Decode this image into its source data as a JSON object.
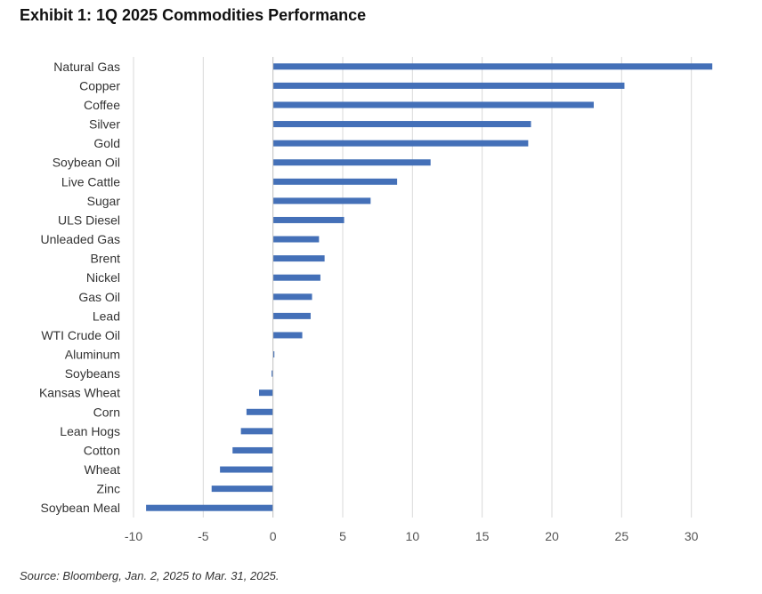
{
  "title": "Exhibit 1: 1Q 2025 Commodities Performance",
  "source": "Source: Bloomberg, Jan. 2, 2025 to Mar. 31, 2025.",
  "colors": {
    "bar": "#4470b8",
    "grid": "#d9d9d9",
    "zero_line": "#bfbfbf"
  },
  "chart_data": {
    "type": "bar",
    "orientation": "horizontal",
    "categories": [
      "Natural Gas",
      "Copper",
      "Coffee",
      "Silver",
      "Gold",
      "Soybean Oil",
      "Live Cattle",
      "Sugar",
      "ULS Diesel",
      "Unleaded Gas",
      "Brent",
      "Nickel",
      "Gas Oil",
      "Lead",
      "WTI Crude Oil",
      "Aluminum",
      "Soybeans",
      "Kansas Wheat",
      "Corn",
      "Lean Hogs",
      "Cotton",
      "Wheat",
      "Zinc",
      "Soybean Meal"
    ],
    "values": [
      31.5,
      25.2,
      23.0,
      18.5,
      18.3,
      11.3,
      8.9,
      7.0,
      5.1,
      3.3,
      3.7,
      3.4,
      2.8,
      2.7,
      2.1,
      0.1,
      -0.1,
      -1.0,
      -1.9,
      -2.3,
      -2.9,
      -3.8,
      -4.4,
      -9.1
    ],
    "xlim": [
      -10,
      32
    ],
    "xticks": [
      "-10",
      "-5",
      "0",
      "5",
      "10",
      "15",
      "20",
      "25",
      "30"
    ],
    "xtick_values": [
      -10,
      -5,
      0,
      5,
      10,
      15,
      20,
      25,
      30
    ],
    "grid": "vertical",
    "legend": "none"
  }
}
